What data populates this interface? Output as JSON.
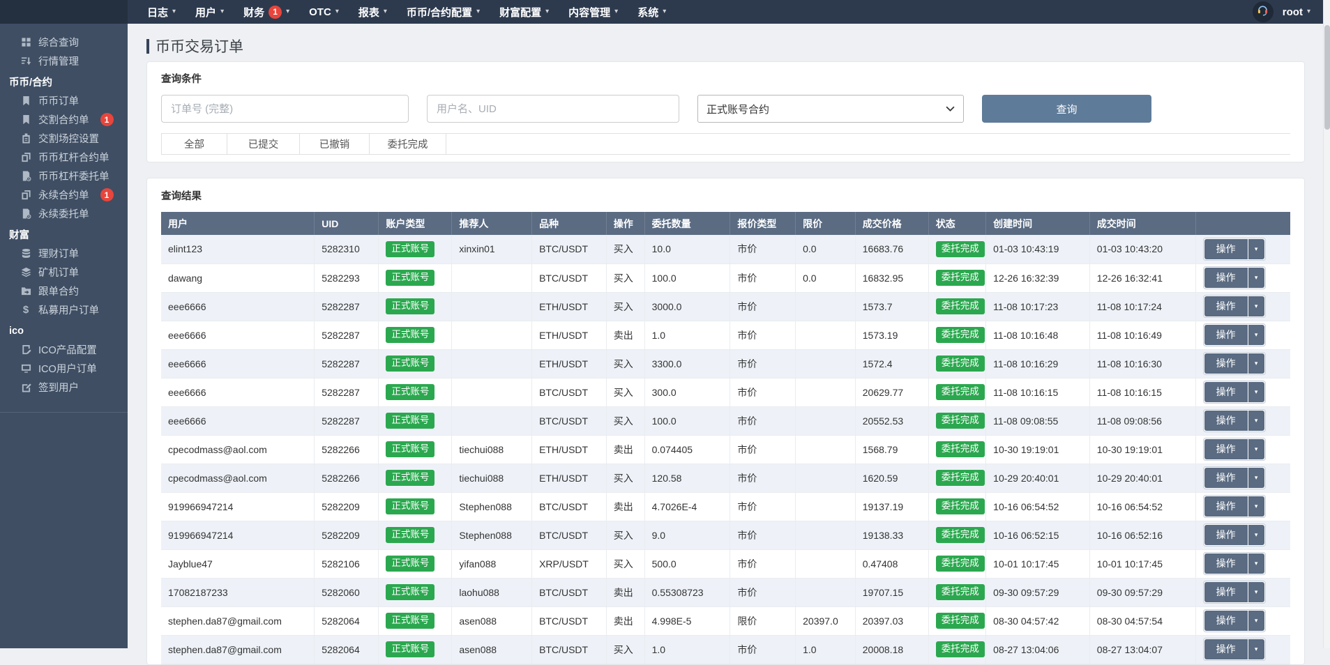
{
  "colors": {
    "navbar_bg": "#2d3a4e",
    "navbar_left_bg": "#24303f",
    "sidebar_bg": "#3f4e63",
    "content_bg": "#eef0f3",
    "table_header_bg": "#5a6b82",
    "primary_button_bg": "#5e7b99",
    "action_button_bg": "#5a6b82",
    "badge_green": "#2ba84f",
    "badge_red": "#e8453c"
  },
  "navbar": {
    "items": [
      {
        "key": "log",
        "label": "日志"
      },
      {
        "key": "user",
        "label": "用户"
      },
      {
        "key": "finance",
        "label": "财务",
        "badge": "1"
      },
      {
        "key": "otc",
        "label": "OTC"
      },
      {
        "key": "report",
        "label": "报表"
      },
      {
        "key": "coin-contract-config",
        "label": "币币/合约配置"
      },
      {
        "key": "wealth-config",
        "label": "财富配置"
      },
      {
        "key": "content-manage",
        "label": "内容管理"
      },
      {
        "key": "system",
        "label": "系统"
      }
    ],
    "user": "root"
  },
  "sidebar": {
    "items": [
      {
        "type": "item",
        "key": "summary-query",
        "icon": "grid-icon",
        "label": "综合查询"
      },
      {
        "type": "item",
        "key": "market-manage",
        "icon": "sort-icon",
        "label": "行情管理"
      },
      {
        "type": "section",
        "key": "coin-contract",
        "label": "币币/合约"
      },
      {
        "type": "item",
        "key": "coin-orders",
        "icon": "bookmark-icon",
        "label": "币币订单"
      },
      {
        "type": "item",
        "key": "delivery-contract-orders",
        "icon": "bookmark-icon",
        "label": "交割合约单",
        "badge": "1"
      },
      {
        "type": "item",
        "key": "delivery-control-settings",
        "icon": "clipboard-icon",
        "label": "交割场控设置"
      },
      {
        "type": "item",
        "key": "coin-margin-contract-orders",
        "icon": "copy-icon",
        "label": "币币杠杆合约单"
      },
      {
        "type": "item",
        "key": "coin-margin-entrust-orders",
        "icon": "file-clock-icon",
        "label": "币币杠杆委托单"
      },
      {
        "type": "item",
        "key": "perpetual-contract-orders",
        "icon": "copy-icon",
        "label": "永续合约单",
        "badge": "1"
      },
      {
        "type": "item",
        "key": "perpetual-entrust-orders",
        "icon": "file-clock-icon",
        "label": "永续委托单"
      },
      {
        "type": "section",
        "key": "wealth",
        "label": "财富"
      },
      {
        "type": "item",
        "key": "finance-orders",
        "icon": "coins-icon",
        "label": "理财订单"
      },
      {
        "type": "item",
        "key": "miner-orders",
        "icon": "layers-icon",
        "label": "矿机订单"
      },
      {
        "type": "item",
        "key": "follow-contract",
        "icon": "folder-icon",
        "label": "跟单合约"
      },
      {
        "type": "item",
        "key": "private-fund-orders",
        "icon": "dollar-icon",
        "label": "私募用户订单"
      },
      {
        "type": "section",
        "key": "ico",
        "label": "ico"
      },
      {
        "type": "item",
        "key": "ico-product-config",
        "icon": "file-edit-icon",
        "label": "ICO产品配置"
      },
      {
        "type": "item",
        "key": "ico-user-orders",
        "icon": "monitor-icon",
        "label": "ICO用户订单"
      },
      {
        "type": "item",
        "key": "checkin-users",
        "icon": "edit-icon",
        "label": "签到用户"
      }
    ]
  },
  "page": {
    "title": "币币交易订单"
  },
  "search": {
    "panel_title": "查询条件",
    "order_placeholder": "订单号 (完整)",
    "user_placeholder": "用户名、UID",
    "account_select_value": "正式账号合约",
    "search_button": "查询",
    "tabs": [
      "全部",
      "已提交",
      "已撤销",
      "委托完成"
    ]
  },
  "results": {
    "panel_title": "查询结果",
    "columns": [
      "用户",
      "UID",
      "账户类型",
      "推荐人",
      "品种",
      "操作",
      "委托数量",
      "报价类型",
      "限价",
      "成交价格",
      "状态",
      "创建时间",
      "成交时间",
      ""
    ],
    "action_label": "操作",
    "rows": [
      {
        "user": "elint123",
        "uid": "5282310",
        "account": "正式账号",
        "referrer": "xinxin01",
        "pair": "BTC/USDT",
        "side": "买入",
        "amount": "10.0",
        "price_type": "市价",
        "limit": "0.0",
        "price": "16683.76",
        "status": "委托完成",
        "created": "01-03 10:43:19",
        "finished": "01-03 10:43:20"
      },
      {
        "user": "dawang",
        "uid": "5282293",
        "account": "正式账号",
        "referrer": "",
        "pair": "BTC/USDT",
        "side": "买入",
        "amount": "100.0",
        "price_type": "市价",
        "limit": "0.0",
        "price": "16832.95",
        "status": "委托完成",
        "created": "12-26 16:32:39",
        "finished": "12-26 16:32:41"
      },
      {
        "user": "eee6666",
        "uid": "5282287",
        "account": "正式账号",
        "referrer": "",
        "pair": "ETH/USDT",
        "side": "买入",
        "amount": "3000.0",
        "price_type": "市价",
        "limit": "",
        "price": "1573.7",
        "status": "委托完成",
        "created": "11-08 10:17:23",
        "finished": "11-08 10:17:24"
      },
      {
        "user": "eee6666",
        "uid": "5282287",
        "account": "正式账号",
        "referrer": "",
        "pair": "ETH/USDT",
        "side": "卖出",
        "amount": "1.0",
        "price_type": "市价",
        "limit": "",
        "price": "1573.19",
        "status": "委托完成",
        "created": "11-08 10:16:48",
        "finished": "11-08 10:16:49"
      },
      {
        "user": "eee6666",
        "uid": "5282287",
        "account": "正式账号",
        "referrer": "",
        "pair": "ETH/USDT",
        "side": "买入",
        "amount": "3300.0",
        "price_type": "市价",
        "limit": "",
        "price": "1572.4",
        "status": "委托完成",
        "created": "11-08 10:16:29",
        "finished": "11-08 10:16:30"
      },
      {
        "user": "eee6666",
        "uid": "5282287",
        "account": "正式账号",
        "referrer": "",
        "pair": "BTC/USDT",
        "side": "买入",
        "amount": "300.0",
        "price_type": "市价",
        "limit": "",
        "price": "20629.77",
        "status": "委托完成",
        "created": "11-08 10:16:15",
        "finished": "11-08 10:16:15"
      },
      {
        "user": "eee6666",
        "uid": "5282287",
        "account": "正式账号",
        "referrer": "",
        "pair": "BTC/USDT",
        "side": "买入",
        "amount": "100.0",
        "price_type": "市价",
        "limit": "",
        "price": "20552.53",
        "status": "委托完成",
        "created": "11-08 09:08:55",
        "finished": "11-08 09:08:56"
      },
      {
        "user": "cpecodmass@aol.com",
        "uid": "5282266",
        "account": "正式账号",
        "referrer": "tiechui088",
        "pair": "ETH/USDT",
        "side": "卖出",
        "amount": "0.074405",
        "price_type": "市价",
        "limit": "",
        "price": "1568.79",
        "status": "委托完成",
        "created": "10-30 19:19:01",
        "finished": "10-30 19:19:01"
      },
      {
        "user": "cpecodmass@aol.com",
        "uid": "5282266",
        "account": "正式账号",
        "referrer": "tiechui088",
        "pair": "ETH/USDT",
        "side": "买入",
        "amount": "120.58",
        "price_type": "市价",
        "limit": "",
        "price": "1620.59",
        "status": "委托完成",
        "created": "10-29 20:40:01",
        "finished": "10-29 20:40:01"
      },
      {
        "user": "919966947214",
        "uid": "5282209",
        "account": "正式账号",
        "referrer": "Stephen088",
        "pair": "BTC/USDT",
        "side": "卖出",
        "amount": "4.7026E-4",
        "price_type": "市价",
        "limit": "",
        "price": "19137.19",
        "status": "委托完成",
        "created": "10-16 06:54:52",
        "finished": "10-16 06:54:52"
      },
      {
        "user": "919966947214",
        "uid": "5282209",
        "account": "正式账号",
        "referrer": "Stephen088",
        "pair": "BTC/USDT",
        "side": "买入",
        "amount": "9.0",
        "price_type": "市价",
        "limit": "",
        "price": "19138.33",
        "status": "委托完成",
        "created": "10-16 06:52:15",
        "finished": "10-16 06:52:16"
      },
      {
        "user": "Jayblue47",
        "uid": "5282106",
        "account": "正式账号",
        "referrer": "yifan088",
        "pair": "XRP/USDT",
        "side": "买入",
        "amount": "500.0",
        "price_type": "市价",
        "limit": "",
        "price": "0.47408",
        "status": "委托完成",
        "created": "10-01 10:17:45",
        "finished": "10-01 10:17:45"
      },
      {
        "user": "17082187233",
        "uid": "5282060",
        "account": "正式账号",
        "referrer": "laohu088",
        "pair": "BTC/USDT",
        "side": "卖出",
        "amount": "0.55308723",
        "price_type": "市价",
        "limit": "",
        "price": "19707.15",
        "status": "委托完成",
        "created": "09-30 09:57:29",
        "finished": "09-30 09:57:29"
      },
      {
        "user": "stephen.da87@gmail.com",
        "uid": "5282064",
        "account": "正式账号",
        "referrer": "asen088",
        "pair": "BTC/USDT",
        "side": "卖出",
        "amount": "4.998E-5",
        "price_type": "限价",
        "limit": "20397.0",
        "price": "20397.03",
        "status": "委托完成",
        "created": "08-30 04:57:42",
        "finished": "08-30 04:57:54"
      },
      {
        "user": "stephen.da87@gmail.com",
        "uid": "5282064",
        "account": "正式账号",
        "referrer": "asen088",
        "pair": "BTC/USDT",
        "side": "买入",
        "amount": "1.0",
        "price_type": "市价",
        "limit": "1.0",
        "price": "20008.18",
        "status": "委托完成",
        "created": "08-27 13:04:06",
        "finished": "08-27 13:04:07"
      }
    ]
  }
}
